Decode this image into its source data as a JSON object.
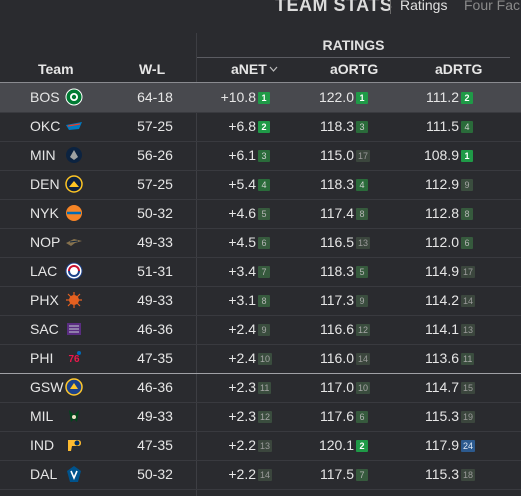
{
  "header": {
    "title": "TEAM STATS",
    "tabs": [
      {
        "label": "Ratings",
        "active": true
      },
      {
        "label": "Four Fac",
        "active": false
      }
    ]
  },
  "table": {
    "group_header": "RATINGS",
    "columns": {
      "team": "Team",
      "wl": "W-L",
      "anet": "aNET",
      "aortg": "aORTG",
      "adrtg": "aDRTG"
    },
    "sort_indicator": "chevron-down-icon",
    "rows": [
      {
        "team": "BOS",
        "wl": "64-18",
        "anet": "+10.8",
        "anet_rank": "1",
        "aortg": "122.0",
        "aortg_rank": "1",
        "adrtg": "111.2",
        "adrtg_rank": "2"
      },
      {
        "team": "OKC",
        "wl": "57-25",
        "anet": "+6.8",
        "anet_rank": "2",
        "aortg": "118.3",
        "aortg_rank": "3",
        "adrtg": "111.5",
        "adrtg_rank": "4"
      },
      {
        "team": "MIN",
        "wl": "56-26",
        "anet": "+6.1",
        "anet_rank": "3",
        "aortg": "115.0",
        "aortg_rank": "17",
        "adrtg": "108.9",
        "adrtg_rank": "1"
      },
      {
        "team": "DEN",
        "wl": "57-25",
        "anet": "+5.4",
        "anet_rank": "4",
        "aortg": "118.3",
        "aortg_rank": "4",
        "adrtg": "112.9",
        "adrtg_rank": "9"
      },
      {
        "team": "NYK",
        "wl": "50-32",
        "anet": "+4.6",
        "anet_rank": "5",
        "aortg": "117.4",
        "aortg_rank": "8",
        "adrtg": "112.8",
        "adrtg_rank": "8"
      },
      {
        "team": "NOP",
        "wl": "49-33",
        "anet": "+4.5",
        "anet_rank": "6",
        "aortg": "116.5",
        "aortg_rank": "13",
        "adrtg": "112.0",
        "adrtg_rank": "6"
      },
      {
        "team": "LAC",
        "wl": "51-31",
        "anet": "+3.4",
        "anet_rank": "7",
        "aortg": "118.3",
        "aortg_rank": "5",
        "adrtg": "114.9",
        "adrtg_rank": "17"
      },
      {
        "team": "PHX",
        "wl": "49-33",
        "anet": "+3.1",
        "anet_rank": "8",
        "aortg": "117.3",
        "aortg_rank": "9",
        "adrtg": "114.2",
        "adrtg_rank": "14"
      },
      {
        "team": "SAC",
        "wl": "46-36",
        "anet": "+2.4",
        "anet_rank": "9",
        "aortg": "116.6",
        "aortg_rank": "12",
        "adrtg": "114.1",
        "adrtg_rank": "13"
      },
      {
        "team": "PHI",
        "wl": "47-35",
        "anet": "+2.4",
        "anet_rank": "10",
        "aortg": "116.0",
        "aortg_rank": "14",
        "adrtg": "113.6",
        "adrtg_rank": "11"
      },
      {
        "team": "GSW",
        "wl": "46-36",
        "anet": "+2.3",
        "anet_rank": "11",
        "aortg": "117.0",
        "aortg_rank": "10",
        "adrtg": "114.7",
        "adrtg_rank": "15"
      },
      {
        "team": "MIL",
        "wl": "49-33",
        "anet": "+2.3",
        "anet_rank": "12",
        "aortg": "117.6",
        "aortg_rank": "6",
        "adrtg": "115.3",
        "adrtg_rank": "19"
      },
      {
        "team": "IND",
        "wl": "47-35",
        "anet": "+2.2",
        "anet_rank": "13",
        "aortg": "120.1",
        "aortg_rank": "2",
        "adrtg": "117.9",
        "adrtg_rank": "24"
      },
      {
        "team": "DAL",
        "wl": "50-32",
        "anet": "+2.2",
        "anet_rank": "14",
        "aortg": "117.5",
        "aortg_rank": "7",
        "adrtg": "115.3",
        "adrtg_rank": "18"
      }
    ]
  },
  "logos": {
    "BOS": {
      "icon": "celtics-logo-icon",
      "color": "#007a33"
    },
    "OKC": {
      "icon": "thunder-logo-icon",
      "color": "#007ac1"
    },
    "MIN": {
      "icon": "timberwolves-logo-icon",
      "color": "#0c2340"
    },
    "DEN": {
      "icon": "nuggets-logo-icon",
      "color": "#fec524"
    },
    "NYK": {
      "icon": "knicks-logo-icon",
      "color": "#f58426"
    },
    "NOP": {
      "icon": "pelicans-logo-icon",
      "color": "#85714d"
    },
    "LAC": {
      "icon": "clippers-logo-icon",
      "color": "#c8102e"
    },
    "PHX": {
      "icon": "suns-logo-icon",
      "color": "#e56020"
    },
    "SAC": {
      "icon": "kings-logo-icon",
      "color": "#5a2d81"
    },
    "PHI": {
      "icon": "sixers-logo-icon",
      "color": "#ed174c"
    },
    "GSW": {
      "icon": "warriors-logo-icon",
      "color": "#1d428a"
    },
    "MIL": {
      "icon": "bucks-logo-icon",
      "color": "#00471b"
    },
    "IND": {
      "icon": "pacers-logo-icon",
      "color": "#fdbb30"
    },
    "DAL": {
      "icon": "mavericks-logo-icon",
      "color": "#00538c"
    }
  },
  "colors": {
    "background": "#2a2b2f",
    "highlight_row": "#48494e",
    "rank_top": "#1f9a47",
    "rank_blue": "#2c5a8e"
  }
}
